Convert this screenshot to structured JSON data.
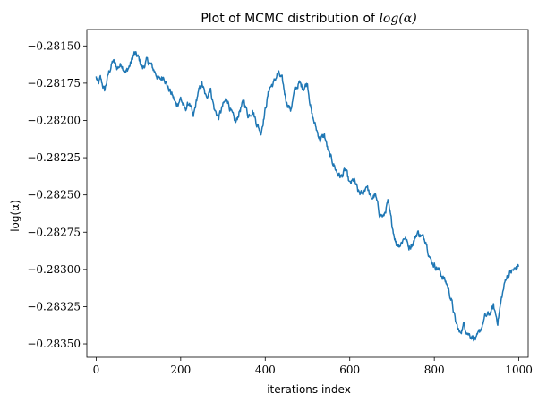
{
  "chart_data": {
    "type": "line",
    "title": "Plot of MCMC distribution of log(α)",
    "xlabel": "iterations index",
    "ylabel": "log(α)",
    "xlim": [
      -22,
      1022
    ],
    "ylim": [
      -0.28359,
      -0.28139
    ],
    "x_ticks": [
      0,
      200,
      400,
      600,
      800,
      1000
    ],
    "x_tick_labels": [
      "0",
      "200",
      "400",
      "600",
      "800",
      "1000"
    ],
    "y_ticks": [
      -0.2815,
      -0.28175,
      -0.282,
      -0.28225,
      -0.2825,
      -0.28275,
      -0.283,
      -0.28325,
      -0.2835
    ],
    "y_tick_labels": [
      "−0.28150",
      "−0.28175",
      "−0.28200",
      "−0.28225",
      "−0.28250",
      "−0.28275",
      "−0.28300",
      "−0.28325",
      "−0.28350"
    ],
    "grid": false,
    "series_color": "#1f77b4",
    "anchors": {
      "x": [
        0,
        5,
        10,
        20,
        30,
        40,
        50,
        60,
        70,
        80,
        90,
        100,
        110,
        120,
        130,
        140,
        150,
        160,
        170,
        180,
        190,
        200,
        210,
        220,
        230,
        240,
        250,
        260,
        270,
        280,
        290,
        300,
        310,
        320,
        330,
        340,
        350,
        360,
        370,
        380,
        390,
        400,
        410,
        420,
        430,
        440,
        450,
        460,
        470,
        480,
        490,
        500,
        510,
        520,
        530,
        540,
        550,
        560,
        570,
        580,
        590,
        600,
        610,
        620,
        630,
        640,
        650,
        660,
        670,
        680,
        690,
        700,
        710,
        720,
        730,
        740,
        750,
        760,
        770,
        780,
        790,
        800,
        810,
        820,
        830,
        840,
        850,
        860,
        870,
        880,
        890,
        900,
        910,
        920,
        930,
        940,
        950,
        960,
        970,
        980,
        990,
        1000
      ],
      "y": [
        -0.28171,
        -0.28176,
        -0.28172,
        -0.2818,
        -0.28168,
        -0.2816,
        -0.28165,
        -0.28162,
        -0.28168,
        -0.28163,
        -0.28155,
        -0.28158,
        -0.28165,
        -0.2816,
        -0.28163,
        -0.28168,
        -0.28173,
        -0.2817,
        -0.28178,
        -0.28183,
        -0.2819,
        -0.28185,
        -0.28193,
        -0.28188,
        -0.28198,
        -0.28183,
        -0.28175,
        -0.28185,
        -0.28178,
        -0.28193,
        -0.28198,
        -0.2819,
        -0.28185,
        -0.28195,
        -0.28202,
        -0.28193,
        -0.28187,
        -0.28197,
        -0.28193,
        -0.28202,
        -0.28208,
        -0.28193,
        -0.28178,
        -0.28175,
        -0.28168,
        -0.28173,
        -0.28187,
        -0.28193,
        -0.2818,
        -0.28175,
        -0.28178,
        -0.28175,
        -0.28196,
        -0.28205,
        -0.28213,
        -0.2821,
        -0.28222,
        -0.28228,
        -0.28235,
        -0.28238,
        -0.28233,
        -0.28243,
        -0.2824,
        -0.28248,
        -0.2825,
        -0.28243,
        -0.28253,
        -0.2825,
        -0.28262,
        -0.28265,
        -0.28255,
        -0.2827,
        -0.28283,
        -0.28283,
        -0.28278,
        -0.28285,
        -0.28282,
        -0.28275,
        -0.28278,
        -0.2828,
        -0.28293,
        -0.28297,
        -0.283,
        -0.28305,
        -0.2831,
        -0.2832,
        -0.28335,
        -0.28343,
        -0.28337,
        -0.28343,
        -0.28345,
        -0.28347,
        -0.2834,
        -0.28332,
        -0.2833,
        -0.28325,
        -0.28335,
        -0.28318,
        -0.28305,
        -0.28302,
        -0.283,
        -0.28297
      ]
    }
  }
}
